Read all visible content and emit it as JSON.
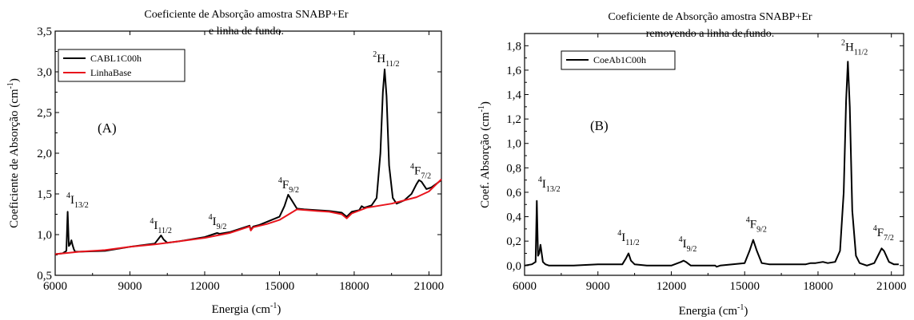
{
  "chart_data": [
    {
      "type": "line",
      "title": "Coeficiente de Absorção amostra SNABP+Er",
      "subtitle": "e linha de fundo.",
      "xlabel": "Energia (cm",
      "xlabel_sup": "-1",
      "xlabel_close": ")",
      "ylabel": "Coeficiente de Absorção (cm",
      "ylabel_sup": "-1",
      "ylabel_close": ")",
      "panel_label": "(A)",
      "xlim": [
        6000,
        21500
      ],
      "ylim": [
        0.5,
        3.5
      ],
      "xticks": [
        6000,
        9000,
        12000,
        15000,
        18000,
        21000
      ],
      "yticks": [
        0.5,
        1.0,
        1.5,
        2.0,
        2.5,
        3.0,
        3.5
      ],
      "ytick_labels": [
        "0,5",
        "1,0",
        "1,5",
        "2,0",
        "2,5",
        "3,0",
        "3,5"
      ],
      "grid": false,
      "legend_position": "top-left",
      "series": [
        {
          "name": "CABL1C00h",
          "color": "#000000",
          "x": [
            6000,
            6300,
            6450,
            6500,
            6550,
            6600,
            6650,
            6700,
            6750,
            6800,
            7000,
            8000,
            9000,
            10000,
            10150,
            10250,
            10350,
            10500,
            11000,
            12000,
            12400,
            12500,
            12600,
            13000,
            13800,
            13850,
            13950,
            14200,
            15000,
            15200,
            15350,
            15500,
            15700,
            16000,
            17000,
            17500,
            17700,
            17900,
            18200,
            18300,
            18400,
            18700,
            18900,
            19050,
            19150,
            19220,
            19300,
            19400,
            19550,
            19700,
            20000,
            20300,
            20500,
            20600,
            20700,
            20900,
            21100,
            21500
          ],
          "values": [
            0.76,
            0.77,
            0.8,
            1.28,
            0.86,
            0.88,
            0.93,
            0.87,
            0.82,
            0.79,
            0.79,
            0.8,
            0.85,
            0.89,
            0.95,
            0.99,
            0.94,
            0.9,
            0.92,
            0.97,
            1.01,
            1.02,
            1.01,
            1.03,
            1.11,
            1.06,
            1.1,
            1.12,
            1.22,
            1.35,
            1.49,
            1.42,
            1.32,
            1.31,
            1.29,
            1.27,
            1.22,
            1.28,
            1.3,
            1.35,
            1.33,
            1.36,
            1.45,
            2.0,
            2.75,
            3.03,
            2.7,
            1.85,
            1.45,
            1.38,
            1.42,
            1.5,
            1.62,
            1.67,
            1.65,
            1.56,
            1.58,
            1.67
          ]
        },
        {
          "name": "LinhaBase",
          "color": "#e8141c",
          "x": [
            6000,
            7000,
            8000,
            9000,
            10000,
            11000,
            12000,
            13000,
            13800,
            13850,
            13950,
            14500,
            15000,
            15700,
            16500,
            17000,
            17500,
            17700,
            17900,
            18500,
            19500,
            20500,
            21000,
            21500
          ],
          "values": [
            0.76,
            0.79,
            0.81,
            0.85,
            0.88,
            0.92,
            0.96,
            1.02,
            1.1,
            1.05,
            1.09,
            1.13,
            1.18,
            1.31,
            1.29,
            1.28,
            1.25,
            1.2,
            1.26,
            1.33,
            1.38,
            1.46,
            1.53,
            1.68
          ]
        }
      ],
      "annotations": [
        {
          "base": "I",
          "sup": "4",
          "sub": "13/2",
          "x": 6450,
          "y": 1.38
        },
        {
          "base": "I",
          "sup": "4",
          "sub": "11/2",
          "x": 9800,
          "y": 1.07
        },
        {
          "base": "I",
          "sup": "4",
          "sub": "9/2",
          "x": 12150,
          "y": 1.12
        },
        {
          "base": "F",
          "sup": "4",
          "sub": "9/2",
          "x": 14950,
          "y": 1.57
        },
        {
          "base": "H",
          "sup": "2",
          "sub": "11/2",
          "x": 18750,
          "y": 3.12
        },
        {
          "base": "F",
          "sup": "4",
          "sub": "7/2",
          "x": 20250,
          "y": 1.74
        }
      ]
    },
    {
      "type": "line",
      "title": "Coeficiente de Absorção amostra SNABP+Er",
      "subtitle": "removendo a linha de fundo.",
      "xlabel": "Energia (cm",
      "xlabel_sup": "-1",
      "xlabel_close": ")",
      "ylabel": "Coef. Absorção (cm",
      "ylabel_sup": "-1",
      "ylabel_close": ")",
      "panel_label": "(B)",
      "xlim": [
        6000,
        21500
      ],
      "ylim": [
        -0.08,
        1.9
      ],
      "xticks": [
        6000,
        9000,
        12000,
        15000,
        18000,
        21000
      ],
      "yticks": [
        0.0,
        0.2,
        0.4,
        0.6,
        0.8,
        1.0,
        1.2,
        1.4,
        1.6,
        1.8
      ],
      "ytick_labels": [
        "0,0",
        "0,2",
        "0,4",
        "0,6",
        "0,8",
        "1,0",
        "1,2",
        "1,4",
        "1,6",
        "1,8"
      ],
      "grid": false,
      "legend_position": "top-left",
      "series": [
        {
          "name": "CoeAb1C00h",
          "color": "#000000",
          "x": [
            6000,
            6300,
            6450,
            6500,
            6550,
            6600,
            6650,
            6700,
            6750,
            6850,
            7000,
            8000,
            9000,
            10000,
            10150,
            10250,
            10350,
            10500,
            11000,
            12000,
            12400,
            12500,
            12600,
            12800,
            13800,
            13850,
            14000,
            15000,
            15200,
            15350,
            15500,
            15700,
            16000,
            17000,
            17500,
            17700,
            17900,
            18200,
            18400,
            18700,
            18900,
            19050,
            19150,
            19220,
            19300,
            19400,
            19550,
            19700,
            20000,
            20300,
            20500,
            20600,
            20700,
            20900,
            21100,
            21300
          ],
          "values": [
            0.0,
            0.01,
            0.03,
            0.53,
            0.08,
            0.1,
            0.17,
            0.1,
            0.03,
            0.01,
            0.0,
            0.0,
            0.01,
            0.01,
            0.06,
            0.1,
            0.04,
            0.01,
            0.0,
            0.0,
            0.03,
            0.04,
            0.03,
            0.0,
            0.0,
            -0.01,
            0.0,
            0.02,
            0.12,
            0.21,
            0.12,
            0.02,
            0.01,
            0.01,
            0.01,
            0.02,
            0.02,
            0.03,
            0.02,
            0.03,
            0.12,
            0.6,
            1.35,
            1.67,
            1.3,
            0.45,
            0.08,
            0.02,
            0.0,
            0.02,
            0.1,
            0.14,
            0.12,
            0.03,
            0.01,
            0.01
          ]
        }
      ],
      "annotations": [
        {
          "base": "I",
          "sup": "4",
          "sub": "13/2",
          "x": 6550,
          "y": 0.64
        },
        {
          "base": "I",
          "sup": "4",
          "sub": "11/2",
          "x": 9800,
          "y": 0.2
        },
        {
          "base": "I",
          "sup": "4",
          "sub": "9/2",
          "x": 12300,
          "y": 0.15
        },
        {
          "base": "F",
          "sup": "4",
          "sub": "9/2",
          "x": 15050,
          "y": 0.31
        },
        {
          "base": "H",
          "sup": "2",
          "sub": "11/2",
          "x": 18950,
          "y": 1.76
        },
        {
          "base": "F",
          "sup": "4",
          "sub": "7/2",
          "x": 20250,
          "y": 0.24
        }
      ]
    }
  ]
}
